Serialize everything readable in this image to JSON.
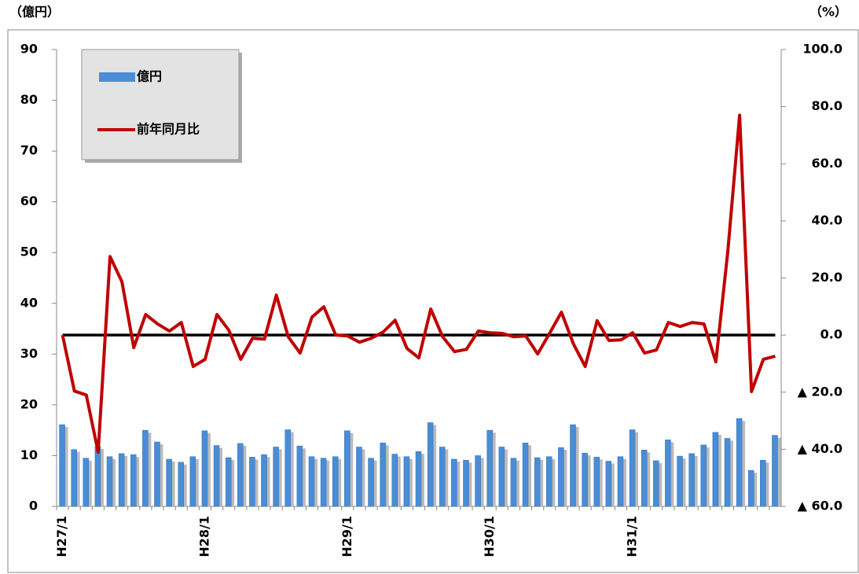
{
  "chart_data": {
    "type": "bar-line",
    "y_unit": "（億円）",
    "y2_unit": "（%）",
    "categories": [
      "H27/1",
      null,
      null,
      null,
      null,
      null,
      null,
      null,
      null,
      null,
      null,
      null,
      "H28/1",
      null,
      null,
      null,
      null,
      null,
      null,
      null,
      null,
      null,
      null,
      null,
      "H29/1",
      null,
      null,
      null,
      null,
      null,
      null,
      null,
      null,
      null,
      null,
      null,
      "H30/1",
      null,
      null,
      null,
      null,
      null,
      null,
      null,
      null,
      null,
      null,
      null,
      "H31/1",
      null,
      null,
      null,
      null,
      null,
      null,
      null,
      null,
      null,
      null,
      null,
      null
    ],
    "series": [
      {
        "name": "億円",
        "type": "bar",
        "color": "#4a8dd6",
        "values": [
          16.1,
          11.2,
          9.5,
          11.8,
          9.8,
          10.4,
          10.2,
          15.0,
          12.7,
          9.3,
          8.7,
          9.8,
          14.9,
          12.0,
          9.6,
          12.4,
          9.7,
          10.2,
          11.7,
          15.1,
          11.9,
          9.8,
          9.5,
          9.8,
          14.9,
          11.7,
          9.5,
          12.5,
          10.3,
          9.8,
          10.8,
          16.5,
          11.7,
          9.3,
          9.1,
          10.0,
          15.0,
          11.7,
          9.5,
          12.5,
          9.6,
          9.8,
          11.6,
          16.1,
          10.5,
          9.7,
          8.9,
          9.8,
          15.1,
          11.1,
          9.0,
          13.1,
          9.9,
          10.4,
          12.1,
          14.6,
          13.4,
          17.3,
          7.1,
          9.1,
          14.0
        ]
      },
      {
        "name": "前年同月比",
        "type": "line",
        "axis": "y2",
        "color": "#c00000",
        "values": [
          0,
          -19.6,
          -21,
          -41,
          27.5,
          18.7,
          -4.4,
          7.2,
          3.9,
          1.4,
          4.4,
          -11,
          -8.5,
          7.2,
          1.7,
          -8.5,
          -1.1,
          -1.4,
          14,
          -0.6,
          -6.3,
          6.3,
          9.9,
          0,
          -0.3,
          -2.5,
          -1.1,
          1.1,
          5.2,
          -4.7,
          -8,
          9.1,
          -0.6,
          -5.8,
          -5,
          1.4,
          0.8,
          0.6,
          -0.6,
          -0.3,
          -6.6,
          0.6,
          8,
          -3,
          -11,
          5,
          -1.9,
          -1.7,
          0.8,
          -6.3,
          -5.2,
          4.4,
          3,
          4.4,
          3.9,
          -9.4,
          29,
          77,
          -19.8,
          -8.5,
          -7.4
        ]
      }
    ],
    "ylim": [
      0,
      90
    ],
    "yticks": [
      0,
      10,
      20,
      30,
      40,
      50,
      60,
      70,
      80,
      90
    ],
    "y2lim": [
      -60,
      100
    ],
    "y2ticks": [
      {
        "value": -60,
        "label": "▲ 60.0"
      },
      {
        "value": -40,
        "label": "▲ 40.0"
      },
      {
        "value": -20,
        "label": "▲ 20.0"
      },
      {
        "value": 0,
        "label": "0.0"
      },
      {
        "value": 20,
        "label": "20.0"
      },
      {
        "value": 40,
        "label": "40.0"
      },
      {
        "value": 60,
        "label": "60.0"
      },
      {
        "value": 80,
        "label": "80.0"
      },
      {
        "value": 100,
        "label": "100.0"
      }
    ],
    "zero_line_color": "#000000"
  }
}
